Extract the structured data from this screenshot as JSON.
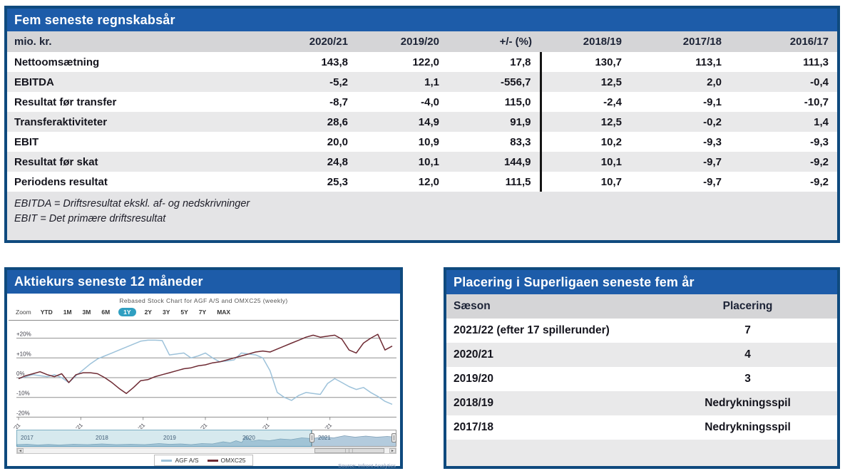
{
  "colors": {
    "accent_blue": "#1d5ca9",
    "panel_border": "#0f4a7e",
    "header_row_gray": "#d5d5d7",
    "stripe_gray": "#e9e9ea",
    "divider_black": "#151515",
    "zoom_selected_teal": "#2f9fc1",
    "agf_line": "#9dc2da",
    "omxc25_line": "#6e2a33"
  },
  "financials": {
    "title": "Fem seneste regnskabsår",
    "unit_header": "mio. kr.",
    "col_headers": [
      "2020/21",
      "2019/20",
      "+/- (%)",
      "2018/19",
      "2017/18",
      "2016/17"
    ],
    "rows": [
      {
        "label": "Nettoomsætning",
        "values": [
          "143,8",
          "122,0",
          "17,8",
          "130,7",
          "113,1",
          "111,3"
        ]
      },
      {
        "label": "EBITDA",
        "values": [
          "-5,2",
          "1,1",
          "-556,7",
          "12,5",
          "2,0",
          "-0,4"
        ]
      },
      {
        "label": "Resultat før transfer",
        "values": [
          "-8,7",
          "-4,0",
          "115,0",
          "-2,4",
          "-9,1",
          "-10,7"
        ]
      },
      {
        "label": "Transferaktiviteter",
        "values": [
          "28,6",
          "14,9",
          "91,9",
          "12,5",
          "-0,2",
          "1,4"
        ]
      },
      {
        "label": "EBIT",
        "values": [
          "20,0",
          "10,9",
          "83,3",
          "10,2",
          "-9,3",
          "-9,3"
        ]
      },
      {
        "label": "Resultat før skat",
        "values": [
          "24,8",
          "10,1",
          "144,9",
          "10,1",
          "-9,7",
          "-9,2"
        ]
      },
      {
        "label": "Periodens resultat",
        "values": [
          "25,3",
          "12,0",
          "111,5",
          "10,7",
          "-9,7",
          "-9,2"
        ]
      }
    ],
    "notes": [
      "EBITDA = Driftsresultat ekskl. af- og nedskrivninger",
      "EBIT = Det primære driftsresultat"
    ]
  },
  "stock": {
    "title": "Aktiekurs seneste 12 måneder",
    "zoom_label": "Zoom",
    "zoom_options": [
      "YTD",
      "1M",
      "3M",
      "6M",
      "1Y",
      "2Y",
      "3Y",
      "5Y",
      "7Y",
      "MAX"
    ],
    "zoom_selected": "1Y",
    "source": "Source: Infront Analytics"
  },
  "chart_data": {
    "type": "line",
    "title": "Rebased Stock Chart for AGF A/S and OMXC25 (weekly)",
    "x_tick_labels": [
      "Jan '21",
      "Mar '21",
      "May '21",
      "Jul '21",
      "Sep '21",
      "Nov '21"
    ],
    "y_ticks": [
      {
        "value": 20,
        "label": "+20%"
      },
      {
        "value": 10,
        "label": "+10%"
      },
      {
        "value": 0,
        "label": "0%"
      },
      {
        "value": -10,
        "label": "-10%"
      },
      {
        "value": -20,
        "label": "-20%"
      }
    ],
    "ylim": [
      -25,
      25
    ],
    "legend_position": "bottom",
    "series": [
      {
        "name": "AGF A/S",
        "color": "#9dc2da",
        "values": [
          -0.5,
          0.5,
          1.5,
          1.0,
          0.5,
          1.5,
          0.0,
          -2.5,
          1.0,
          4.0,
          7.0,
          9.5,
          11.0,
          12.5,
          14.0,
          15.5,
          17.0,
          18.5,
          19.0,
          19.0,
          18.8,
          11.5,
          12.0,
          12.5,
          10.0,
          11.0,
          12.5,
          10.0,
          8.0,
          8.5,
          9.0,
          12.5,
          12.0,
          11.5,
          10.0,
          3.5,
          -7.5,
          -10.0,
          -11.5,
          -9.0,
          -7.5,
          -8.0,
          -8.5,
          -3.0,
          -0.5,
          -2.5,
          -4.5,
          -6.0,
          -5.0,
          -7.5,
          -9.5,
          -12.0,
          -13.5
        ]
      },
      {
        "name": "OMXC25",
        "color": "#6e2a33",
        "values": [
          -0.5,
          1.0,
          2.0,
          3.0,
          1.5,
          0.5,
          2.0,
          -2.5,
          1.5,
          2.5,
          2.5,
          2.0,
          0.0,
          -2.5,
          -5.5,
          -8.0,
          -5.0,
          -1.5,
          -1.0,
          0.5,
          1.5,
          2.5,
          3.5,
          4.5,
          5.0,
          6.0,
          6.5,
          7.5,
          8.0,
          9.0,
          10.0,
          11.0,
          12.0,
          13.0,
          13.5,
          13.0,
          14.5,
          16.0,
          17.5,
          19.0,
          20.5,
          21.5,
          20.5,
          21.0,
          21.5,
          19.5,
          14.0,
          12.5,
          17.5,
          20.0,
          22.0,
          14.0,
          16.0
        ]
      }
    ],
    "navigator": {
      "year_labels": [
        "2017",
        "2018",
        "2019",
        "2020",
        "2021"
      ],
      "selected_window": "2021"
    }
  },
  "superliga": {
    "title": "Placering i Superligaen seneste fem år",
    "col_headers": [
      "Sæson",
      "Placering"
    ],
    "rows": [
      {
        "season": "2021/22 (efter 17 spillerunder)",
        "placement": "7"
      },
      {
        "season": "2020/21",
        "placement": "4"
      },
      {
        "season": "2019/20",
        "placement": "3"
      },
      {
        "season": "2018/19",
        "placement": "Nedrykningsspil"
      },
      {
        "season": "2017/18",
        "placement": "Nedrykningsspil"
      }
    ]
  }
}
